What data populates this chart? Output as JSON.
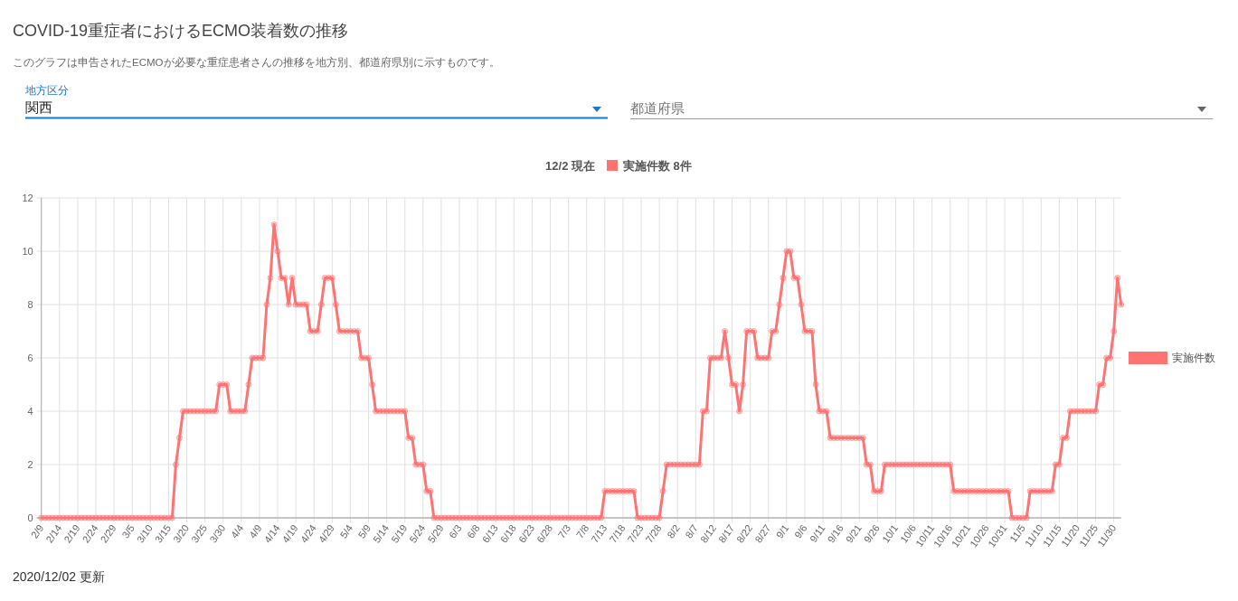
{
  "chart_data": {
    "type": "line",
    "title": "COVID-19重症者におけるECMO装着数の推移",
    "subtitle": "このグラフは申告されたECMOが必要な重症患者さんの推移を地方別、都道府県別に示すものです。",
    "annotations": [
      "地方区分",
      "関西",
      "都道府県",
      "12/2 現在",
      "実施件数 8件",
      "2020/12/02 更新"
    ],
    "categories": [
      "2/9",
      null,
      null,
      null,
      null,
      "2/14",
      null,
      null,
      null,
      null,
      "2/19",
      null,
      null,
      null,
      null,
      "2/24",
      null,
      null,
      null,
      null,
      "2/29",
      null,
      null,
      null,
      null,
      "3/5",
      null,
      null,
      null,
      null,
      "3/10",
      null,
      null,
      null,
      null,
      "3/15",
      null,
      null,
      null,
      null,
      "3/20",
      null,
      null,
      null,
      null,
      "3/25",
      null,
      null,
      null,
      null,
      "3/30",
      null,
      null,
      null,
      null,
      "4/4",
      null,
      null,
      null,
      null,
      "4/9",
      null,
      null,
      null,
      null,
      "4/14",
      null,
      null,
      null,
      null,
      "4/19",
      null,
      null,
      null,
      null,
      "4/24",
      null,
      null,
      null,
      null,
      "4/29",
      null,
      null,
      null,
      null,
      "5/4",
      null,
      null,
      null,
      null,
      "5/9",
      null,
      null,
      null,
      null,
      "5/14",
      null,
      null,
      null,
      null,
      "5/19",
      null,
      null,
      null,
      null,
      "5/24",
      null,
      null,
      null,
      null,
      "5/29",
      null,
      null,
      null,
      null,
      "6/3",
      null,
      null,
      null,
      null,
      "6/8",
      null,
      null,
      null,
      null,
      "6/13",
      null,
      null,
      null,
      null,
      "6/18",
      null,
      null,
      null,
      null,
      "6/23",
      null,
      null,
      null,
      null,
      "6/28",
      null,
      null,
      null,
      null,
      "7/3",
      null,
      null,
      null,
      null,
      "7/8",
      null,
      null,
      null,
      null,
      "7/13",
      null,
      null,
      null,
      null,
      "7/18",
      null,
      null,
      null,
      null,
      "7/23",
      null,
      null,
      null,
      null,
      "7/28",
      null,
      null,
      null,
      null,
      "8/2",
      null,
      null,
      null,
      null,
      "8/7",
      null,
      null,
      null,
      null,
      "8/12",
      null,
      null,
      null,
      null,
      "8/17",
      null,
      null,
      null,
      null,
      "8/22",
      null,
      null,
      null,
      null,
      "8/27",
      null,
      null,
      null,
      null,
      "9/1",
      null,
      null,
      null,
      null,
      "9/6",
      null,
      null,
      null,
      null,
      "9/11",
      null,
      null,
      null,
      null,
      "9/16",
      null,
      null,
      null,
      null,
      "9/21",
      null,
      null,
      null,
      null,
      "9/26",
      null,
      null,
      null,
      null,
      "10/1",
      null,
      null,
      null,
      null,
      "10/6",
      null,
      null,
      null,
      null,
      "10/11",
      null,
      null,
      null,
      null,
      "10/16",
      null,
      null,
      null,
      null,
      "10/21",
      null,
      null,
      null,
      null,
      "10/26",
      null,
      null,
      null,
      null,
      "10/31",
      null,
      null,
      null,
      null,
      "11/5",
      null,
      null,
      null,
      null,
      "11/10",
      null,
      null,
      null,
      null,
      "11/15",
      null,
      null,
      null,
      null,
      "11/20",
      null,
      null,
      null,
      null,
      "11/25",
      null,
      null,
      null,
      null,
      "11/30",
      null,
      null
    ],
    "series": [
      {
        "name": "実施件数",
        "color": "#ff7373",
        "values": [
          0,
          0,
          0,
          0,
          0,
          0,
          0,
          0,
          0,
          0,
          0,
          0,
          0,
          0,
          0,
          0,
          0,
          0,
          0,
          0,
          0,
          0,
          0,
          0,
          0,
          0,
          0,
          0,
          0,
          0,
          0,
          0,
          0,
          0,
          0,
          0,
          0,
          2,
          3,
          4,
          4,
          4,
          4,
          4,
          4,
          4,
          4,
          4,
          4,
          5,
          5,
          5,
          4,
          4,
          4,
          4,
          4,
          5,
          6,
          6,
          6,
          6,
          8,
          9,
          11,
          10,
          9,
          9,
          8,
          9,
          8,
          8,
          8,
          8,
          7,
          7,
          7,
          8,
          9,
          9,
          9,
          8,
          7,
          7,
          7,
          7,
          7,
          7,
          6,
          6,
          6,
          5,
          4,
          4,
          4,
          4,
          4,
          4,
          4,
          4,
          4,
          3,
          3,
          2,
          2,
          2,
          1,
          1,
          0,
          0,
          0,
          0,
          0,
          0,
          0,
          0,
          0,
          0,
          0,
          0,
          0,
          0,
          0,
          0,
          0,
          0,
          0,
          0,
          0,
          0,
          0,
          0,
          0,
          0,
          0,
          0,
          0,
          0,
          0,
          0,
          0,
          0,
          0,
          0,
          0,
          0,
          0,
          0,
          0,
          0,
          0,
          0,
          0,
          0,
          0,
          1,
          1,
          1,
          1,
          1,
          1,
          1,
          1,
          1,
          0,
          0,
          0,
          0,
          0,
          0,
          0,
          1,
          2,
          2,
          2,
          2,
          2,
          2,
          2,
          2,
          2,
          2,
          4,
          4,
          6,
          6,
          6,
          6,
          7,
          6,
          5,
          5,
          4,
          5,
          7,
          7,
          7,
          6,
          6,
          6,
          6,
          7,
          7,
          8,
          9,
          10,
          10,
          9,
          9,
          8,
          7,
          7,
          7,
          5,
          4,
          4,
          4,
          3,
          3,
          3,
          3,
          3,
          3,
          3,
          3,
          3,
          3,
          2,
          2,
          1,
          1,
          1,
          2,
          2,
          2,
          2,
          2,
          2,
          2,
          2,
          2,
          2,
          2,
          2,
          2,
          2,
          2,
          2,
          2,
          2,
          2,
          1,
          1,
          1,
          1,
          1,
          1,
          1,
          1,
          1,
          1,
          1,
          1,
          1,
          1,
          1,
          1,
          0,
          0,
          0,
          0,
          0,
          1,
          1,
          1,
          1,
          1,
          1,
          1,
          2,
          2,
          3,
          3,
          4,
          4,
          4,
          4,
          4,
          4,
          4,
          4,
          5,
          5,
          6,
          6,
          7,
          9,
          8
        ]
      }
    ],
    "ylim": [
      0,
      12
    ],
    "yticks": [
      0,
      2,
      4,
      6,
      8,
      10,
      12
    ],
    "grid": true,
    "legend": "right",
    "marker": "circle",
    "line_style": "solid"
  }
}
